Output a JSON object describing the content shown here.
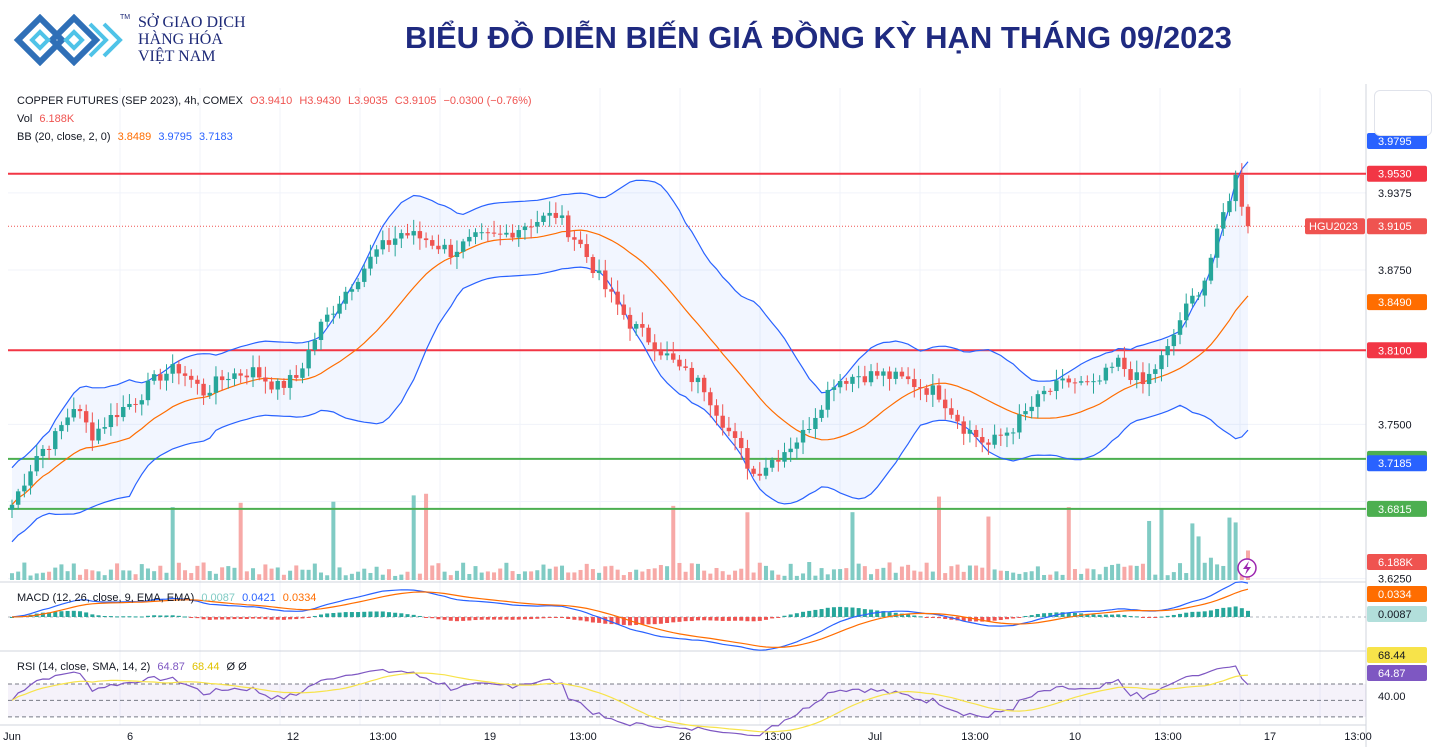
{
  "header": {
    "logo_lines": [
      "SỞ GIAO DỊCH",
      "HÀNG HÓA",
      "VIỆT NAM"
    ],
    "logo_tm": "TM",
    "title": "BIỂU ĐỒ DIỄN BIẾN GIÁ ĐỒNG KỲ HẠN THÁNG 09/2023"
  },
  "legend": {
    "symbol": "COPPER FUTURES (SEP 2023), 4h, COMEX",
    "open": "O3.9410",
    "high": "H3.9430",
    "low": "L3.9035",
    "close": "C3.9105",
    "change": "−0.0300 (−0.76%)",
    "vol_label": "Vol",
    "vol_value": "6.188K",
    "bb_label": "BB (20, close, 2, 0)",
    "bb_basis": "3.8489",
    "bb_upper": "3.9795",
    "bb_lower": "3.7183",
    "macd_label": "MACD (12, 26, close, 9, EMA, EMA)",
    "macd_hist": "0.0087",
    "macd_line": "0.0421",
    "macd_signal": "0.0334",
    "rsi_label": "RSI (14, close, SMA, 14, 2)",
    "rsi_value": "64.87",
    "rsi_ma": "68.44",
    "rsi_extra": "Ø Ø"
  },
  "colors": {
    "up": "#26a69a",
    "down": "#ef5350",
    "bb_band": "#2962ff",
    "bb_basis": "#ff6d00",
    "resistance": "#f23645",
    "support": "#4caf50",
    "rsi": "#7e57c2",
    "rsi_ma": "#f7e34a",
    "title": "#1f2a80"
  },
  "chart_data": {
    "type": "candlestick",
    "title": "BIỂU ĐỒ DIỄN BIẾN GIÁ ĐỒNG KỲ HẠN THÁNG 09/2023",
    "symbol": "COPPER FUTURES (SEP 2023), 4h, COMEX",
    "ylim": [
      3.6025,
      4.005
    ],
    "y_ticks": [
      "3.9375",
      "3.8750",
      "3.7500",
      "3.6250"
    ],
    "x_ticks": [
      "Jun",
      "6",
      "12",
      "13:00",
      "19",
      "13:00",
      "26",
      "13:00",
      "Jul",
      "13:00",
      "10",
      "13:00",
      "17",
      "13:00"
    ],
    "horizontal_lines": [
      {
        "value": 3.953,
        "label": "3.9530",
        "kind": "resistance"
      },
      {
        "value": 3.81,
        "label": "3.8100",
        "kind": "resistance"
      },
      {
        "value": 3.722,
        "label": "3.7220",
        "kind": "support"
      },
      {
        "value": 3.6815,
        "label": "3.6815",
        "kind": "support"
      }
    ],
    "last_price": {
      "value": 3.9105,
      "label": "3.9105",
      "tag": "HGU2023"
    },
    "price_labels": [
      {
        "value": 3.9795,
        "label": "3.9795",
        "kind": "bb_upper"
      },
      {
        "value": 3.849,
        "label": "3.8490",
        "kind": "bb_basis"
      },
      {
        "value": 3.7185,
        "label": "3.7185",
        "kind": "bb_lower"
      }
    ],
    "volume_label": "6.188K",
    "close_anchors": [
      [
        0,
        3.685
      ],
      [
        4,
        3.725
      ],
      [
        7,
        3.74
      ],
      [
        10,
        3.765
      ],
      [
        13,
        3.742
      ],
      [
        17,
        3.76
      ],
      [
        20,
        3.77
      ],
      [
        24,
        3.79
      ],
      [
        27,
        3.795
      ],
      [
        31,
        3.776
      ],
      [
        35,
        3.79
      ],
      [
        39,
        3.793
      ],
      [
        43,
        3.78
      ],
      [
        46,
        3.788
      ],
      [
        50,
        3.83
      ],
      [
        54,
        3.858
      ],
      [
        59,
        3.89
      ],
      [
        63,
        3.905
      ],
      [
        67,
        3.9
      ],
      [
        71,
        3.89
      ],
      [
        75,
        3.9
      ],
      [
        79,
        3.902
      ],
      [
        83,
        3.912
      ],
      [
        88,
        3.92
      ],
      [
        92,
        3.895
      ],
      [
        96,
        3.86
      ],
      [
        100,
        3.832
      ],
      [
        104,
        3.815
      ],
      [
        108,
        3.795
      ],
      [
        112,
        3.78
      ],
      [
        117,
        3.735
      ],
      [
        120,
        3.71
      ],
      [
        124,
        3.725
      ],
      [
        128,
        3.742
      ],
      [
        133,
        3.785
      ],
      [
        137,
        3.79
      ],
      [
        141,
        3.79
      ],
      [
        145,
        3.785
      ],
      [
        150,
        3.775
      ],
      [
        154,
        3.748
      ],
      [
        158,
        3.733
      ],
      [
        162,
        3.748
      ],
      [
        167,
        3.775
      ],
      [
        171,
        3.785
      ],
      [
        175,
        3.78
      ],
      [
        179,
        3.8
      ],
      [
        183,
        3.782
      ],
      [
        187,
        3.81
      ],
      [
        189,
        3.835
      ],
      [
        193,
        3.868
      ],
      [
        196,
        3.92
      ],
      [
        198,
        3.95
      ],
      [
        200,
        3.9105
      ]
    ],
    "macd": {
      "label": "MACD (12, 26, close, 9, EMA, EMA)",
      "histogram": 0.0087,
      "macd": 0.0421,
      "signal": 0.0334
    },
    "rsi": {
      "label": "RSI (14, close, SMA, 14, 2)",
      "value": 64.87,
      "ma": 68.44,
      "levels_shown": [
        "68.44",
        "64.87",
        "40.00"
      ]
    }
  }
}
